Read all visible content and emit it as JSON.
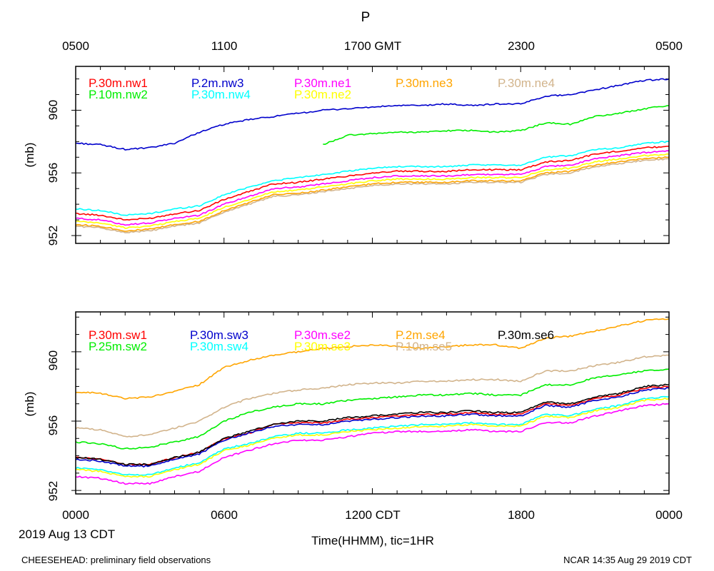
{
  "figure": {
    "title": "P",
    "top_axis_labels": [
      "0500",
      "1100",
      "1700 GMT",
      "2300",
      "0500"
    ],
    "bottom_axis_labels": [
      "0000",
      "0600",
      "1200 CDT",
      "1800",
      "0000"
    ],
    "date_label": "2019 Aug 13 CDT",
    "xlabel": "Time(HHMM), tic=1HR",
    "footer_left": "CHEESEHEAD: preliminary field observations",
    "footer_right": "NCAR 14:35 Aug 29 2019 CDT"
  },
  "chart_data": [
    {
      "type": "line",
      "panel": "top",
      "title": "P",
      "ylabel": "(mb)",
      "ylim": [
        951.5,
        962.8
      ],
      "yticks": [
        952,
        956,
        960
      ],
      "xlim": [
        0,
        24
      ],
      "x_unit": "hours since 0000 CDT",
      "x": [
        0,
        1,
        2,
        3,
        4,
        5,
        6,
        7,
        8,
        9,
        10,
        11,
        12,
        13,
        14,
        15,
        16,
        17,
        18,
        19,
        20,
        21,
        22,
        23,
        24
      ],
      "series": [
        {
          "name": "P.30m.nw1",
          "color": "#ff0000",
          "values": [
            953.4,
            953.3,
            953.0,
            953.1,
            953.4,
            953.6,
            954.3,
            954.8,
            955.3,
            955.4,
            955.6,
            955.8,
            956.0,
            956.1,
            956.1,
            956.1,
            956.2,
            956.2,
            956.2,
            956.7,
            956.8,
            957.2,
            957.4,
            957.6,
            957.7
          ]
        },
        {
          "name": "P.10m.nw2",
          "color": "#00ee00",
          "values": [
            null,
            null,
            null,
            null,
            null,
            null,
            null,
            null,
            null,
            null,
            957.8,
            958.4,
            958.5,
            958.6,
            958.6,
            958.7,
            958.7,
            958.6,
            958.7,
            959.2,
            959.1,
            959.6,
            959.8,
            960.1,
            960.3
          ]
        },
        {
          "name": "P.2m.nw3",
          "color": "#0000cc",
          "values": [
            957.9,
            957.8,
            957.5,
            957.6,
            957.9,
            958.6,
            959.1,
            959.4,
            959.6,
            959.8,
            960.0,
            960.1,
            960.2,
            960.3,
            960.3,
            960.4,
            960.3,
            960.4,
            960.4,
            960.9,
            961.0,
            961.3,
            961.6,
            961.9,
            962.0
          ]
        },
        {
          "name": "P.30m.nw4",
          "color": "#00ffff",
          "values": [
            953.7,
            953.6,
            953.3,
            953.4,
            953.7,
            953.9,
            954.6,
            955.1,
            955.5,
            955.7,
            955.9,
            956.1,
            956.3,
            956.4,
            956.4,
            956.4,
            956.5,
            956.5,
            956.5,
            957.0,
            957.1,
            957.5,
            957.6,
            957.9,
            958.0
          ]
        },
        {
          "name": "P.30m.ne1",
          "color": "#ff00ff",
          "values": [
            953.1,
            953.0,
            952.7,
            952.8,
            953.1,
            953.3,
            954.0,
            954.5,
            955.0,
            955.1,
            955.3,
            955.5,
            955.7,
            955.8,
            955.8,
            955.8,
            955.9,
            955.9,
            955.9,
            956.4,
            956.5,
            956.9,
            957.1,
            957.3,
            957.4
          ]
        },
        {
          "name": "P.30m.ne2",
          "color": "#ffff00",
          "values": [
            952.9,
            952.8,
            952.5,
            952.6,
            952.9,
            953.1,
            953.8,
            954.3,
            954.8,
            954.9,
            955.1,
            955.3,
            955.5,
            955.6,
            955.6,
            955.6,
            955.7,
            955.7,
            955.7,
            956.2,
            956.3,
            956.7,
            956.9,
            957.1,
            957.2
          ]
        },
        {
          "name": "P.30m.ne3",
          "color": "#ffa500",
          "values": [
            952.7,
            952.6,
            952.3,
            952.4,
            952.7,
            952.9,
            953.6,
            954.1,
            954.6,
            954.7,
            954.9,
            955.1,
            955.3,
            955.4,
            955.4,
            955.4,
            955.5,
            955.5,
            955.5,
            956.0,
            956.1,
            956.5,
            956.7,
            956.9,
            957.0
          ]
        },
        {
          "name": "P.30m.ne4",
          "color": "#d2b48c",
          "values": [
            952.6,
            952.5,
            952.2,
            952.3,
            952.6,
            952.8,
            953.5,
            954.0,
            954.5,
            954.6,
            954.8,
            955.0,
            955.2,
            955.3,
            955.3,
            955.3,
            955.4,
            955.4,
            955.4,
            955.9,
            956.0,
            956.4,
            956.6,
            956.8,
            956.9
          ]
        }
      ]
    },
    {
      "type": "line",
      "panel": "bottom",
      "ylabel": "(mb)",
      "ylim": [
        951.8,
        962.3
      ],
      "yticks": [
        952,
        956,
        960
      ],
      "xlim": [
        0,
        24
      ],
      "x_unit": "hours since 0000 CDT",
      "x": [
        0,
        1,
        2,
        3,
        4,
        5,
        6,
        7,
        8,
        9,
        10,
        11,
        12,
        13,
        14,
        15,
        16,
        17,
        18,
        19,
        20,
        21,
        22,
        23,
        24
      ],
      "series": [
        {
          "name": "P.30m.sw1",
          "color": "#ff0000",
          "values": [
            953.9,
            953.8,
            953.5,
            953.5,
            953.9,
            954.2,
            955.0,
            955.3,
            955.8,
            955.9,
            955.9,
            956.1,
            956.2,
            956.3,
            956.4,
            956.4,
            956.5,
            956.4,
            956.4,
            957.0,
            956.9,
            957.3,
            957.5,
            957.9,
            958.0
          ]
        },
        {
          "name": "P.25m.sw2",
          "color": "#00ee00",
          "values": [
            954.8,
            954.7,
            954.4,
            954.5,
            954.8,
            955.1,
            956.0,
            956.5,
            956.8,
            957.0,
            957.0,
            957.2,
            957.3,
            957.4,
            957.5,
            957.5,
            957.6,
            957.5,
            957.5,
            958.1,
            958.1,
            958.5,
            958.7,
            958.9,
            959.0
          ]
        },
        {
          "name": "P.30m.sw3",
          "color": "#0000cc",
          "values": [
            953.8,
            953.7,
            953.4,
            953.4,
            953.8,
            954.1,
            954.9,
            955.3,
            955.7,
            955.8,
            955.8,
            956.0,
            956.1,
            956.2,
            956.3,
            956.3,
            956.4,
            956.3,
            956.3,
            956.9,
            956.8,
            957.2,
            957.4,
            957.8,
            957.9
          ]
        },
        {
          "name": "P.30m.sw4",
          "color": "#00ffff",
          "values": [
            953.3,
            953.2,
            952.9,
            952.9,
            953.3,
            953.6,
            954.4,
            954.7,
            955.1,
            955.3,
            955.3,
            955.5,
            955.6,
            955.7,
            955.8,
            955.8,
            955.9,
            955.8,
            955.8,
            956.4,
            956.3,
            956.7,
            956.9,
            957.3,
            957.4
          ]
        },
        {
          "name": "P.30m.se2",
          "color": "#ff00ff",
          "values": [
            952.8,
            952.7,
            952.4,
            952.4,
            952.8,
            953.1,
            953.9,
            954.3,
            954.7,
            954.9,
            954.9,
            955.1,
            955.3,
            955.4,
            955.4,
            955.4,
            955.5,
            955.4,
            955.4,
            955.9,
            955.9,
            956.3,
            956.6,
            956.9,
            957.0
          ]
        },
        {
          "name": "P.30m.se3",
          "color": "#ffff00",
          "values": [
            953.2,
            953.1,
            952.8,
            952.8,
            953.2,
            953.5,
            954.3,
            954.6,
            955.0,
            955.2,
            955.2,
            955.4,
            955.5,
            955.6,
            955.7,
            955.7,
            955.8,
            955.7,
            955.7,
            956.3,
            956.2,
            956.6,
            956.8,
            957.2,
            957.3
          ]
        },
        {
          "name": "P.2m.se4",
          "color": "#ffa500",
          "values": [
            957.7,
            957.6,
            957.3,
            957.4,
            957.7,
            958.1,
            959.1,
            959.5,
            959.8,
            960.0,
            960.2,
            960.3,
            960.4,
            960.3,
            960.2,
            960.3,
            960.4,
            960.4,
            960.2,
            960.8,
            960.9,
            961.2,
            961.5,
            961.8,
            961.9
          ]
        },
        {
          "name": "P.10m.se5",
          "color": "#d2b48c",
          "values": [
            955.6,
            955.5,
            955.1,
            955.2,
            955.6,
            956.0,
            956.8,
            957.3,
            957.6,
            957.8,
            957.9,
            958.1,
            958.2,
            958.2,
            958.3,
            958.3,
            958.4,
            958.4,
            958.3,
            958.9,
            958.9,
            959.2,
            959.4,
            959.7,
            959.8
          ]
        },
        {
          "name": "P.30m.se6",
          "color": "#000000",
          "values": [
            953.9,
            953.8,
            953.5,
            953.5,
            953.9,
            954.2,
            955.0,
            955.4,
            955.8,
            956.0,
            956.0,
            956.2,
            956.3,
            956.4,
            956.5,
            956.5,
            956.6,
            956.5,
            956.5,
            957.1,
            957.0,
            957.4,
            957.6,
            958.0,
            958.1
          ]
        }
      ]
    }
  ]
}
